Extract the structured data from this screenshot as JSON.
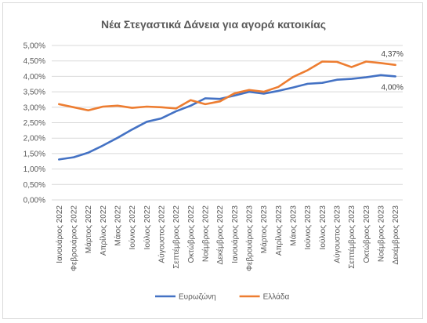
{
  "chart_data": {
    "type": "line",
    "title": "Νέα Στεγαστικά Δάνεια για αγορά κατοικίας",
    "xlabel": "",
    "ylabel": "",
    "ylim": [
      0,
      5
    ],
    "y_ticks": [
      "0,00%",
      "0,50%",
      "1,00%",
      "1,50%",
      "2,00%",
      "2,50%",
      "3,00%",
      "3,50%",
      "4,00%",
      "4,50%",
      "5,00%"
    ],
    "grid": true,
    "legend_position": "bottom",
    "categories": [
      "Ιανουάριος 2022",
      "Φεβρουάριος 2022",
      "Μάρτιος 2022",
      "Απρίλιος 2022",
      "Μάιος 2022",
      "Ιούνιος 2022",
      "Ιούλιος 2022",
      "Αύγουστος 2022",
      "Σεπτέμβριος 2022",
      "Οκτώβριος 2022",
      "Νοέμβριος 2022",
      "Δεκέμβριος 2022",
      "Ιανουάριος 2023",
      "Φεβρουάριος 2023",
      "Μάρτιος 2023",
      "Απρίλιος 2023",
      "Μάιος 2023",
      "Ιούνιος 2023",
      "Ιούλιος 2023",
      "Αύγουστος 2023",
      "Σεπτέμβριος 2023",
      "Οκτώβριος 2023",
      "Νοέμβριος 2023",
      "Δεκέμβριος 2023"
    ],
    "series": [
      {
        "name": "Ευρωζώνη",
        "color": "#4472c4",
        "values": [
          1.31,
          1.38,
          1.53,
          1.76,
          2.01,
          2.28,
          2.53,
          2.64,
          2.87,
          3.05,
          3.29,
          3.27,
          3.38,
          3.5,
          3.44,
          3.53,
          3.64,
          3.76,
          3.79,
          3.89,
          3.92,
          3.97,
          4.04,
          4.0
        ],
        "end_label": "4,00%"
      },
      {
        "name": "Ελλάδα",
        "color": "#ed7d31",
        "values": [
          3.1,
          3.0,
          2.9,
          3.02,
          3.05,
          2.98,
          3.02,
          3.0,
          2.96,
          3.23,
          3.1,
          3.19,
          3.45,
          3.56,
          3.5,
          3.66,
          3.98,
          4.2,
          4.48,
          4.47,
          4.3,
          4.48,
          4.43,
          4.37
        ],
        "end_label": "4,37%"
      }
    ]
  }
}
